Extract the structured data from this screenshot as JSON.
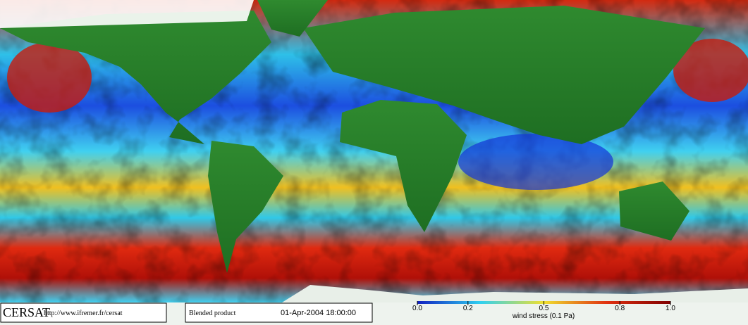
{
  "footer": {
    "logo": "CERSAT",
    "url": "http://www.ifremer.fr/cersat",
    "product": "Blended product",
    "date": "01-Apr-2004 18:00:00"
  },
  "colorbar": {
    "label": "wind stress (0.1 Pa)",
    "lim": [
      0,
      1
    ],
    "ticks": [
      {
        "value": 0,
        "label": "0.0"
      },
      0.2,
      0.5,
      0.8,
      {
        "value": 1,
        "label": "1.0"
      }
    ]
  }
}
